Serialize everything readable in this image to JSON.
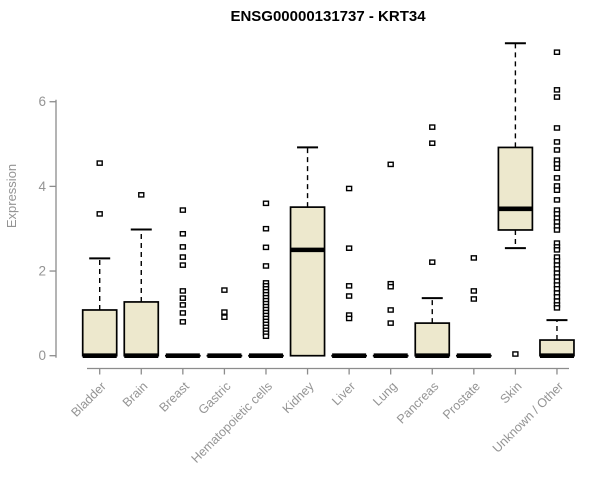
{
  "title": "ENSG00000131737 - KRT34",
  "chart_data": {
    "type": "boxplot",
    "title": "ENSG00000131737 - KRT34",
    "ylabel": "Expression",
    "yticks": [
      0,
      2,
      4,
      6
    ],
    "ylim": [
      0,
      7.5
    ],
    "grid": false,
    "legend": "none",
    "colors": {
      "box_fill": "#ede8cd",
      "box_stroke": "#000000",
      "median": "#000000",
      "whisker": "#000000",
      "outlier_stroke": "#000000",
      "outlier_fill": "#ffffff",
      "axis_line": "#8c8c8c",
      "axis_text": "#949494",
      "title_text": "#000000",
      "background": "#ffffff"
    },
    "categories": [
      "Bladder",
      "Brain",
      "Breast",
      "Gastric",
      "Hematopoietic cells",
      "Kidney",
      "Liver",
      "Lung",
      "Pancreas",
      "Prostate",
      "Skin",
      "Unknown / Other"
    ],
    "series": [
      {
        "category": "Bladder",
        "q1": 0,
        "median": 0,
        "q3": 1.08,
        "whisker_low": 0,
        "whisker_high": 2.3,
        "outliers": [
          4.55,
          3.35
        ]
      },
      {
        "category": "Brain",
        "q1": 0,
        "median": 0,
        "q3": 1.27,
        "whisker_low": 0,
        "whisker_high": 2.98,
        "outliers": [
          3.8
        ]
      },
      {
        "category": "Breast",
        "q1": 0,
        "median": 0,
        "q3": 0,
        "whisker_low": 0,
        "whisker_high": 0,
        "outliers": [
          3.44,
          2.88,
          2.57,
          2.33,
          2.14,
          1.53,
          1.36,
          1.2,
          1.01,
          0.8
        ]
      },
      {
        "category": "Gastric",
        "q1": 0,
        "median": 0,
        "q3": 0,
        "whisker_low": 0,
        "whisker_high": 0,
        "outliers": [
          1.55,
          1.03,
          0.91
        ]
      },
      {
        "category": "Hematopoietic cells",
        "q1": 0,
        "median": 0,
        "q3": 0,
        "whisker_low": 0,
        "whisker_high": 0,
        "outliers": [
          3.6,
          3.0,
          2.56,
          2.12,
          1.72,
          1.65,
          1.58,
          1.51,
          1.44,
          1.37,
          1.3,
          1.23,
          1.16,
          1.09,
          1.02,
          0.95,
          0.88,
          0.81,
          0.74,
          0.67,
          0.6,
          0.53,
          0.46
        ]
      },
      {
        "category": "Kidney",
        "q1": 0,
        "median": 2.5,
        "q3": 3.51,
        "whisker_low": 0,
        "whisker_high": 4.92,
        "outliers": []
      },
      {
        "category": "Liver",
        "q1": 0,
        "median": 0,
        "q3": 0,
        "whisker_low": 0,
        "whisker_high": 0,
        "outliers": [
          3.95,
          2.54,
          1.65,
          1.41,
          0.96,
          0.88
        ]
      },
      {
        "category": "Lung",
        "q1": 0,
        "median": 0,
        "q3": 0,
        "whisker_low": 0,
        "whisker_high": 0,
        "outliers": [
          4.52,
          1.7,
          1.63,
          1.08,
          0.77
        ]
      },
      {
        "category": "Pancreas",
        "q1": 0,
        "median": 0,
        "q3": 0.77,
        "whisker_low": 0,
        "whisker_high": 1.36,
        "outliers": [
          5.4,
          5.02,
          2.21
        ]
      },
      {
        "category": "Prostate",
        "q1": 0,
        "median": 0,
        "q3": 0,
        "whisker_low": 0,
        "whisker_high": 0,
        "outliers": [
          2.31,
          1.53,
          1.34
        ]
      },
      {
        "category": "Skin",
        "q1": 2.97,
        "median": 3.47,
        "q3": 4.92,
        "whisker_low": 2.54,
        "whisker_high": 7.38,
        "outliers": [
          0.04
        ]
      },
      {
        "category": "Unknown / Other",
        "q1": 0,
        "median": 0,
        "q3": 0.37,
        "whisker_low": 0,
        "whisker_high": 0.84,
        "outliers": [
          7.17,
          6.28,
          6.11,
          5.38,
          5.05,
          4.86,
          4.62,
          4.53,
          4.43,
          4.2,
          4.01,
          3.91,
          3.68,
          3.44,
          3.35,
          3.25,
          3.16,
          3.06,
          2.97,
          2.66,
          2.57,
          2.5,
          2.33,
          2.24,
          2.14,
          2.05,
          1.95,
          1.86,
          1.76,
          1.67,
          1.58,
          1.48,
          1.39,
          1.29,
          1.2,
          1.13
        ]
      }
    ]
  }
}
